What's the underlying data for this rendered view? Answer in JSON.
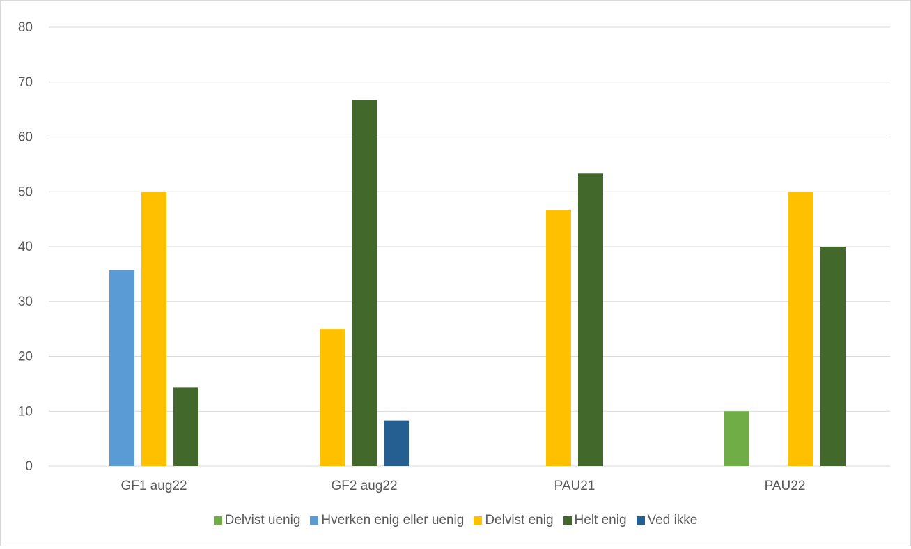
{
  "chart_data": {
    "type": "bar",
    "categories": [
      "GF1 aug22",
      "GF2 aug22",
      "PAU21",
      "PAU22"
    ],
    "ylim": [
      0,
      80
    ],
    "yticks": [
      0,
      10,
      20,
      30,
      40,
      50,
      60,
      70,
      80
    ],
    "grid": true,
    "legend_position": "bottom",
    "series": [
      {
        "name": "Delvist uenig",
        "color": "#70ad47",
        "values": [
          0,
          0,
          0,
          10
        ]
      },
      {
        "name": "Hverken enig eller uenig",
        "color": "#5b9bd5",
        "values": [
          35.7,
          0,
          0,
          0
        ]
      },
      {
        "name": "Delvist enig",
        "color": "#ffc000",
        "values": [
          50,
          25,
          46.7,
          50
        ]
      },
      {
        "name": "Helt enig",
        "color": "#43682b",
        "values": [
          14.3,
          66.7,
          53.3,
          40
        ]
      },
      {
        "name": "Ved ikke",
        "color": "#255e91",
        "values": [
          0,
          8.3,
          0,
          0
        ]
      }
    ]
  }
}
